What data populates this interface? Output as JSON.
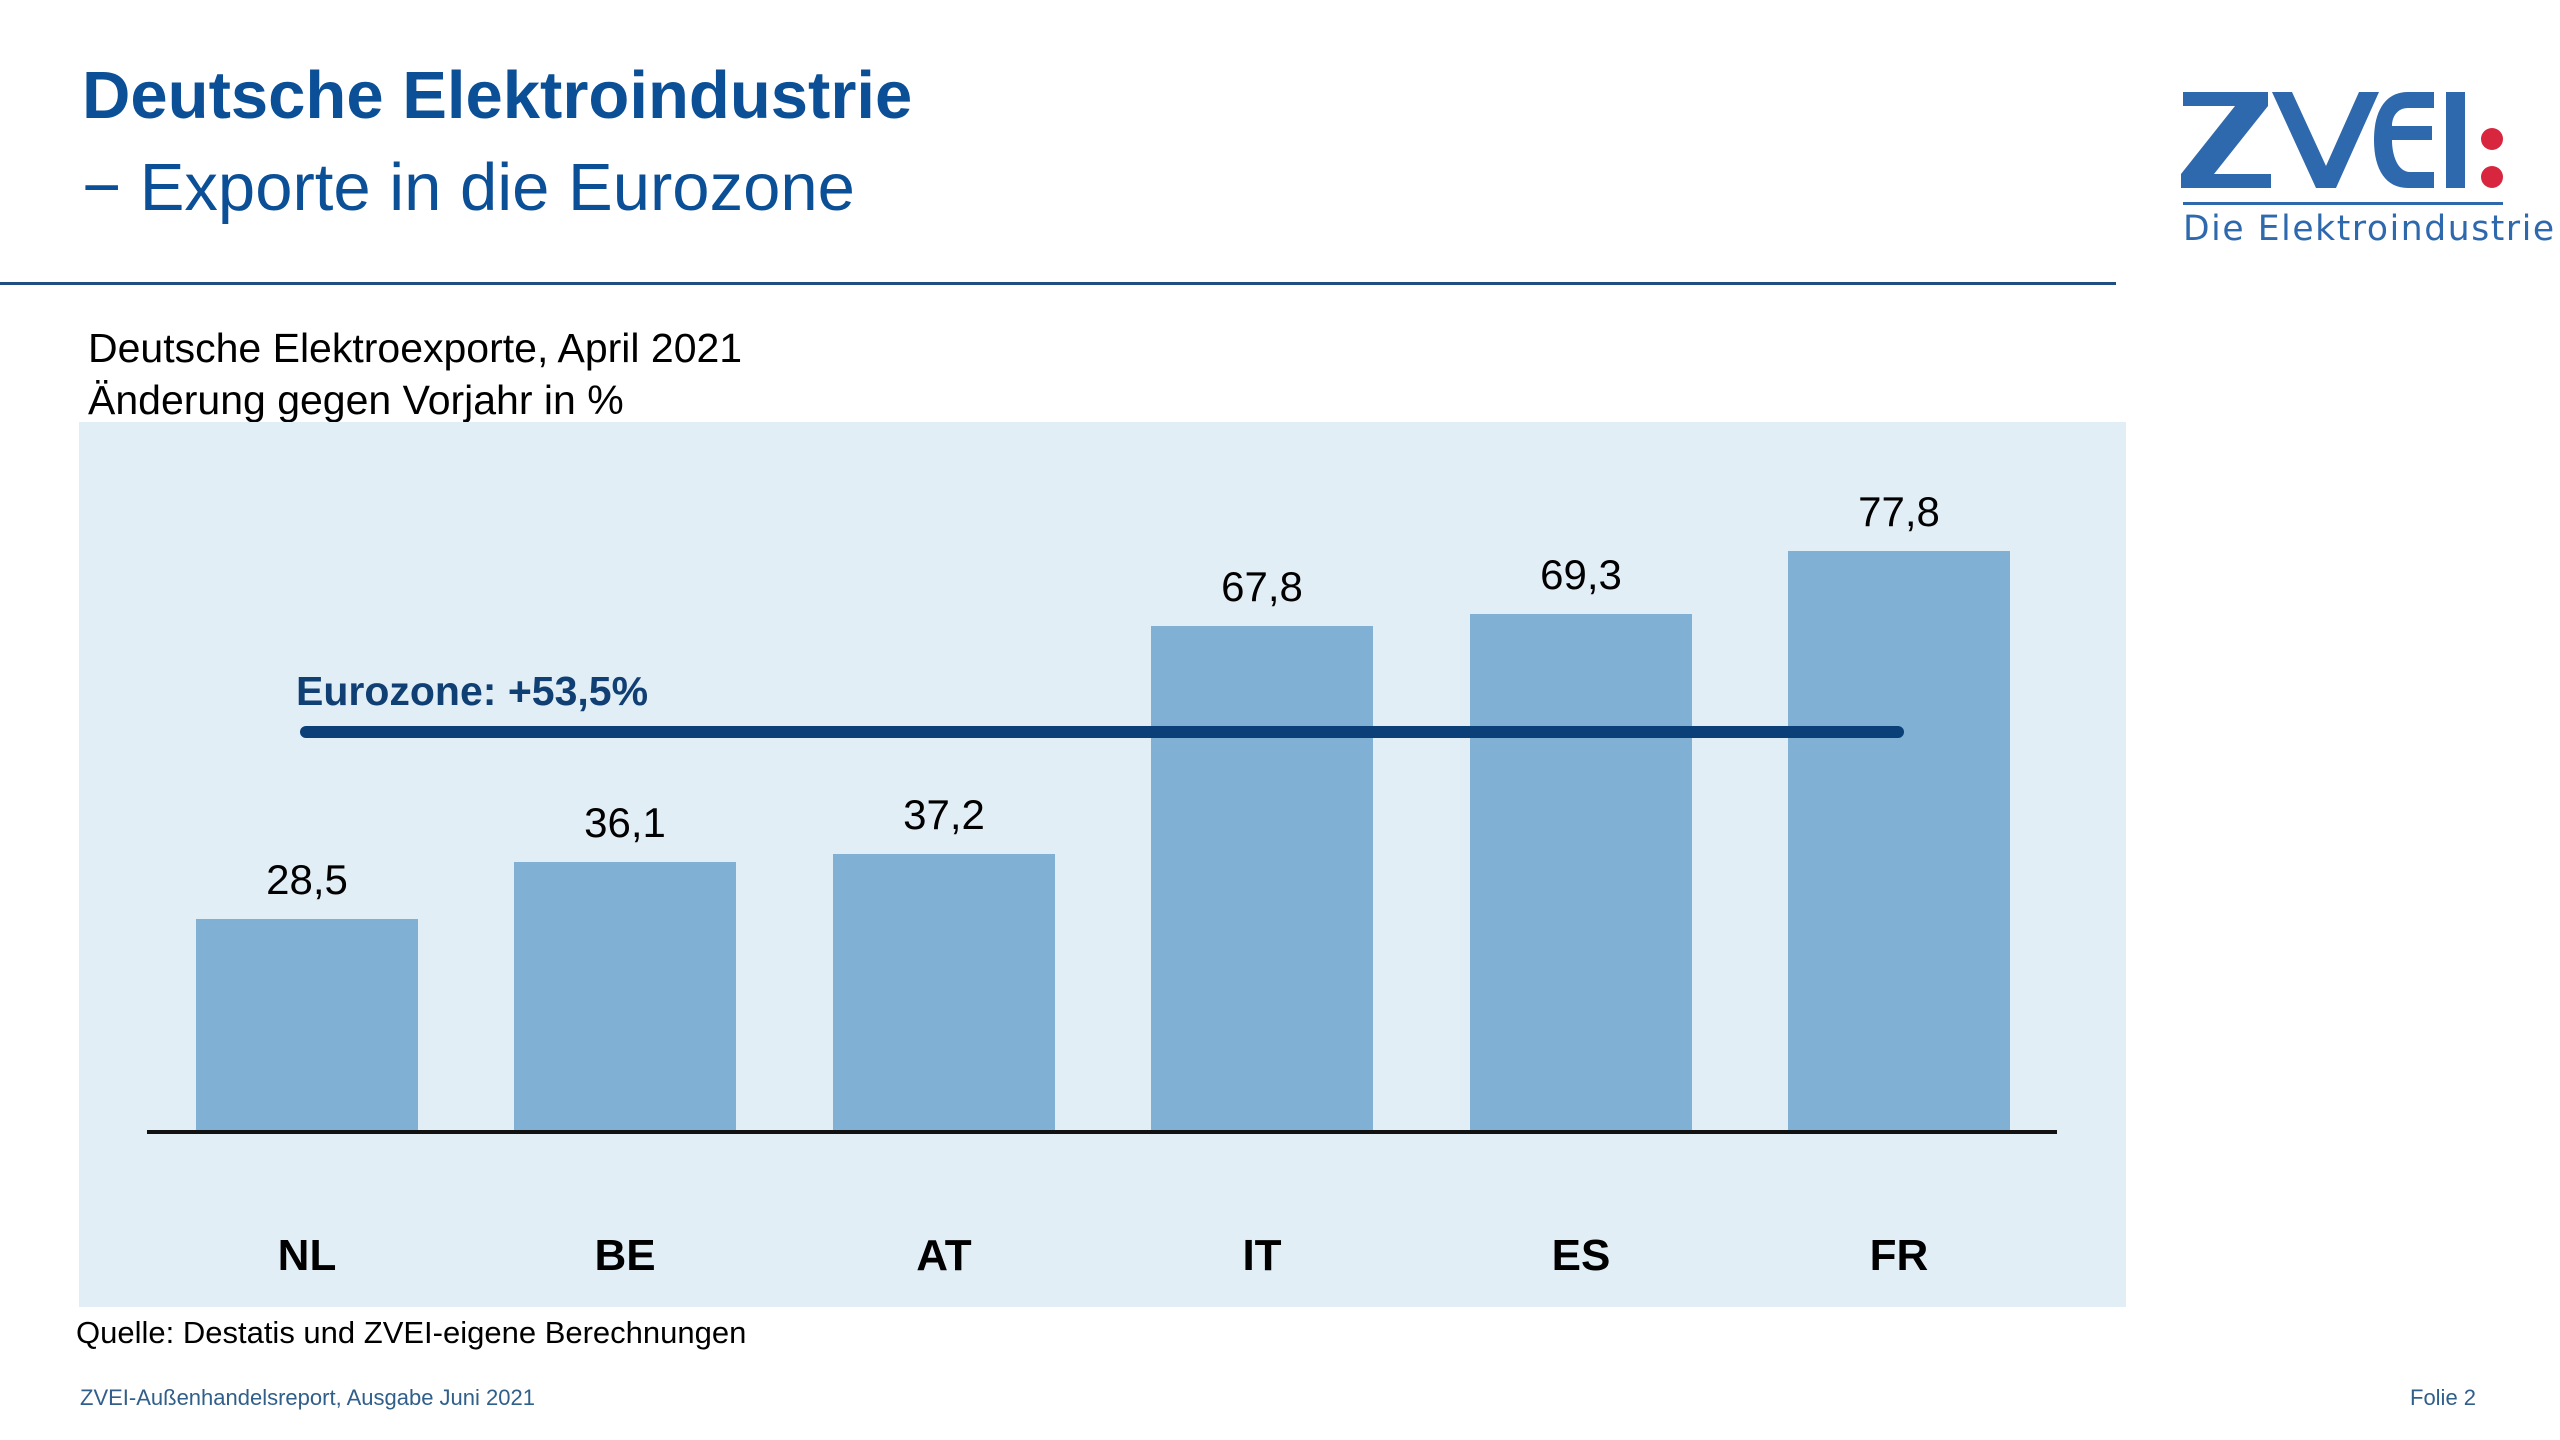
{
  "slide": {
    "title": "Deutsche Elektroindustrie",
    "subtitle": "− Exporte in die Eurozone",
    "logo": {
      "wordmark": "ZVEI",
      "tagline": "Die Elektroindustrie",
      "colors": {
        "blue": "#2e68ad",
        "red": "#d8263f"
      }
    },
    "chart_heading_line1": "Deutsche Elektroexporte, April 2021",
    "chart_heading_line2": "Änderung gegen Vorjahr in %",
    "source": "Quelle: Destatis und ZVEI-eigene Berechnungen",
    "footer_left": "ZVEI-Außenhandelsreport, Ausgabe Juni 2021",
    "footer_right": "Folie 2",
    "colors": {
      "title": "#0b4f96",
      "panel_bg": "#e2eef6",
      "bar": "#80b0d4",
      "reference_line": "#0a3f78"
    }
  },
  "chart_data": {
    "type": "bar",
    "title": "Deutsche Elektroexporte, April 2021",
    "subtitle": "Änderung gegen Vorjahr in %",
    "xlabel": "",
    "ylabel": "Änderung gegen Vorjahr in %",
    "categories": [
      "NL",
      "BE",
      "AT",
      "IT",
      "ES",
      "FR"
    ],
    "values": [
      28.5,
      36.1,
      37.2,
      67.8,
      69.3,
      77.8
    ],
    "value_labels": [
      "28,5",
      "36,1",
      "37,2",
      "67,8",
      "69,3",
      "77,8"
    ],
    "reference_line": {
      "label": "Eurozone: +53,5%",
      "value": 53.5
    },
    "ylim": [
      0,
      80
    ],
    "grid": false,
    "legend": null
  }
}
